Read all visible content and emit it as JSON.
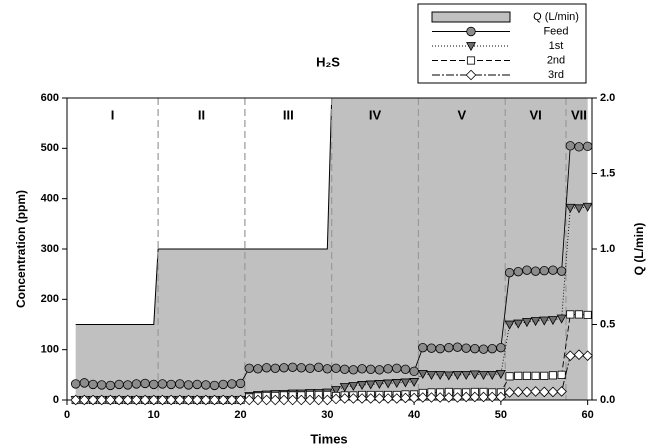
{
  "chart_data": {
    "type": "line",
    "title": "H₂S",
    "xlabel": "Times",
    "ylabel": "Concentration (ppm)",
    "y2label": "Q (L/min)",
    "xlim": [
      0,
      60.5
    ],
    "xticks": [
      0,
      10,
      20,
      30,
      40,
      50,
      60
    ],
    "ylim": [
      0,
      600
    ],
    "yticks": [
      0,
      100,
      200,
      300,
      400,
      500,
      600
    ],
    "y2lim": [
      0,
      2
    ],
    "y2ticks": [
      {
        "value": 0,
        "label": "0.0"
      },
      0.5,
      {
        "value": 1,
        "label": "1.0"
      },
      1.5,
      {
        "value": 2,
        "label": "2.0"
      }
    ],
    "phase_boundaries": [
      10.5,
      20.5,
      30.5,
      40.5,
      50.5,
      57.5
    ],
    "phase_labels": [
      "I",
      "II",
      "III",
      "IV",
      "V",
      "VI",
      "VII"
    ],
    "x": [
      1,
      2,
      3,
      4,
      5,
      6,
      7,
      8,
      9,
      10,
      11,
      12,
      13,
      14,
      15,
      16,
      17,
      18,
      19,
      20,
      21,
      22,
      23,
      24,
      25,
      26,
      27,
      28,
      29,
      30,
      31,
      32,
      33,
      34,
      35,
      36,
      37,
      38,
      39,
      40,
      41,
      42,
      43,
      44,
      45,
      46,
      47,
      48,
      49,
      50,
      51,
      52,
      53,
      54,
      55,
      56,
      57,
      58,
      59,
      60
    ],
    "series": [
      {
        "name": "Q (L/min)",
        "kind": "area",
        "axis": "y2",
        "color": "#c0c0c0",
        "x": [
          1,
          10,
          10.5,
          30,
          30.5,
          60
        ],
        "values": [
          0.5,
          0.5,
          1.0,
          1.0,
          2.0,
          2.0
        ]
      },
      {
        "name": "Feed",
        "marker": "circle",
        "color": "#8c8c8c",
        "dash": "",
        "values": [
          32,
          34,
          31,
          30,
          29,
          31,
          30,
          32,
          33,
          31,
          32,
          31,
          32,
          30,
          31,
          30,
          29,
          31,
          32,
          33,
          63,
          62,
          64,
          63,
          64,
          65,
          64,
          63,
          65,
          62,
          63,
          61,
          60,
          62,
          61,
          60,
          62,
          63,
          61,
          57,
          104,
          103,
          102,
          104,
          105,
          103,
          102,
          101,
          102,
          104,
          253,
          255,
          258,
          256,
          257,
          258,
          256,
          505,
          503,
          504
        ]
      },
      {
        "name": "1st",
        "marker": "triangle-down",
        "color": "#6e6e6e",
        "dash": "1 2",
        "values": [
          0,
          0,
          0,
          0,
          0,
          0,
          0,
          0,
          0,
          0,
          0,
          0,
          0,
          0,
          0,
          0,
          0,
          0,
          0,
          0,
          8,
          10,
          11,
          12,
          12,
          13,
          13,
          14,
          14,
          15,
          20,
          26,
          28,
          30,
          31,
          32,
          33,
          34,
          35,
          36,
          52,
          50,
          50,
          49,
          50,
          50,
          51,
          50,
          50,
          52,
          150,
          152,
          155,
          157,
          158,
          159,
          162,
          382,
          381,
          384
        ]
      },
      {
        "name": "2nd",
        "marker": "square",
        "color": "#ffffff",
        "dash": "6 3",
        "values": [
          0,
          0,
          0,
          0,
          0,
          0,
          0,
          0,
          0,
          0,
          0,
          0,
          0,
          0,
          0,
          0,
          0,
          0,
          0,
          0,
          5,
          7,
          8,
          8,
          9,
          9,
          9,
          10,
          10,
          10,
          8,
          9,
          9,
          10,
          10,
          10,
          10,
          10,
          11,
          11,
          14,
          15,
          15,
          16,
          15,
          15,
          16,
          16,
          15,
          15,
          47,
          48,
          48,
          48,
          48,
          49,
          50,
          170,
          170,
          169
        ]
      },
      {
        "name": "3rd",
        "marker": "diamond",
        "color": "#ffffff",
        "dash": "8 2 2 2",
        "values": [
          0,
          0,
          0,
          0,
          0,
          0,
          0,
          0,
          0,
          0,
          0,
          0,
          0,
          0,
          0,
          0,
          0,
          0,
          0,
          0,
          0,
          0,
          0,
          0,
          0,
          0,
          0,
          0,
          0,
          0,
          2,
          3,
          3,
          3,
          3,
          3,
          3,
          3,
          4,
          4,
          5,
          5,
          5,
          5,
          5,
          6,
          6,
          6,
          6,
          6,
          15,
          16,
          16,
          17,
          16,
          16,
          17,
          88,
          90,
          88
        ]
      }
    ]
  }
}
